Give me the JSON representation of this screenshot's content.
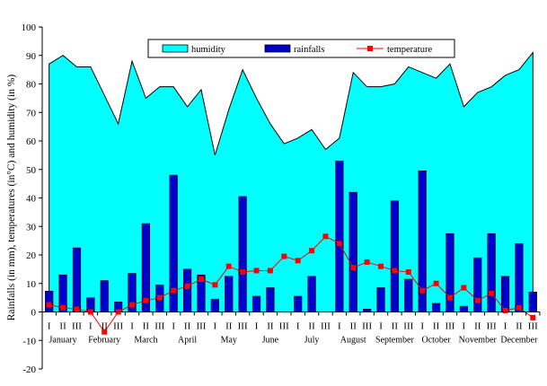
{
  "chart_data": {
    "type": "bar",
    "ylabel": "Rainfalls (in mm), temperatures (in°C) and humidity (in %)",
    "ylim": [
      -20,
      100
    ],
    "yticks": [
      -20,
      -10,
      0,
      10,
      20,
      30,
      40,
      50,
      60,
      70,
      80,
      90,
      100
    ],
    "grid": false,
    "legend": {
      "placement": "top-center",
      "entries": [
        "humidity",
        "rainfalls",
        "temperature"
      ]
    },
    "decade_tick_labels": [
      "I",
      "II",
      "III"
    ],
    "months": [
      "January",
      "February",
      "March",
      "April",
      "May",
      "June",
      "July",
      "August",
      "September",
      "October",
      "November",
      "December"
    ],
    "series": [
      {
        "name": "humidity",
        "type": "area",
        "color": "#00FFFF",
        "values": [
          87,
          90,
          86,
          86,
          76,
          66,
          88,
          75,
          79,
          79,
          72,
          78,
          55,
          71,
          85,
          75,
          66,
          59,
          61,
          64,
          57,
          61,
          84,
          79,
          79,
          80,
          86,
          84,
          82,
          87,
          72,
          77,
          79,
          83,
          85,
          91
        ]
      },
      {
        "name": "rainfalls",
        "type": "bar",
        "color": "#0000CC",
        "values": [
          7.3,
          13,
          22.5,
          5,
          11,
          3.5,
          13.5,
          31,
          9.5,
          48,
          15,
          13,
          4.5,
          12.5,
          40.5,
          5.5,
          8.5,
          0,
          5.5,
          12.5,
          0,
          53,
          42,
          1,
          8.5,
          39,
          11.5,
          49.5,
          3,
          27.5,
          2,
          19,
          27.5,
          12.5,
          24,
          7
        ]
      },
      {
        "name": "temperature",
        "type": "line",
        "color": "#FF0000",
        "values": [
          2.5,
          1.5,
          1,
          0,
          -7,
          0,
          2.5,
          4,
          5,
          7.5,
          9,
          11.5,
          9.5,
          16,
          14,
          14.5,
          14.5,
          19.5,
          18,
          21.5,
          26.5,
          24,
          15.5,
          17.5,
          16,
          14.5,
          14,
          7.5,
          10,
          5,
          8.5,
          4,
          6.5,
          0.5,
          1.5,
          -2
        ]
      }
    ]
  }
}
